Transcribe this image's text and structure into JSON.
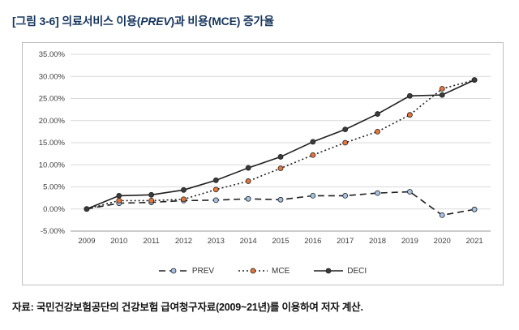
{
  "title": {
    "label": "[그림 3-6]",
    "pre": " 의료서비스 이용(",
    "italic": "PREV",
    "post": ")과 비용(MCE) 증가율"
  },
  "source": "자료: 국민건강보험공단의 건강보험 급여청구자료(2009~21년)를 이용하여 저자 계산.",
  "chart_data": {
    "type": "line",
    "title": "[그림 3-6] 의료서비스 이용(PREV)과 비용(MCE) 증가율",
    "xlabel": "",
    "ylabel": "",
    "categories": [
      "2009",
      "2010",
      "2011",
      "2012",
      "2013",
      "2014",
      "2015",
      "2016",
      "2017",
      "2018",
      "2019",
      "2020",
      "2021"
    ],
    "series": [
      {
        "name": "PREV",
        "line_style": "dashed",
        "marker_color": "#a6c3e3",
        "values": [
          0.0,
          1.3,
          1.5,
          1.9,
          2.0,
          2.3,
          2.1,
          3.0,
          3.0,
          3.6,
          3.9,
          -1.4,
          -0.1
        ]
      },
      {
        "name": "MCE",
        "line_style": "dotted",
        "marker_color": "#e8763a",
        "values": [
          0.0,
          1.9,
          1.9,
          2.2,
          4.4,
          6.3,
          9.2,
          12.2,
          15.0,
          17.5,
          21.3,
          27.2,
          29.2
        ]
      },
      {
        "name": "DECI",
        "line_style": "solid",
        "marker_color": "#3b3b3b",
        "values": [
          0.0,
          3.0,
          3.2,
          4.3,
          6.5,
          9.3,
          11.8,
          15.2,
          18.0,
          21.5,
          25.6,
          25.8,
          29.2
        ]
      }
    ],
    "ylim": [
      -5,
      35
    ],
    "ytick_step": 5,
    "ytick_format": "0.00%",
    "grid": true,
    "grid_color": "#d9d9d9",
    "line_color": "#1f1f1f",
    "axis_color": "#999999",
    "legend_position": "bottom"
  }
}
